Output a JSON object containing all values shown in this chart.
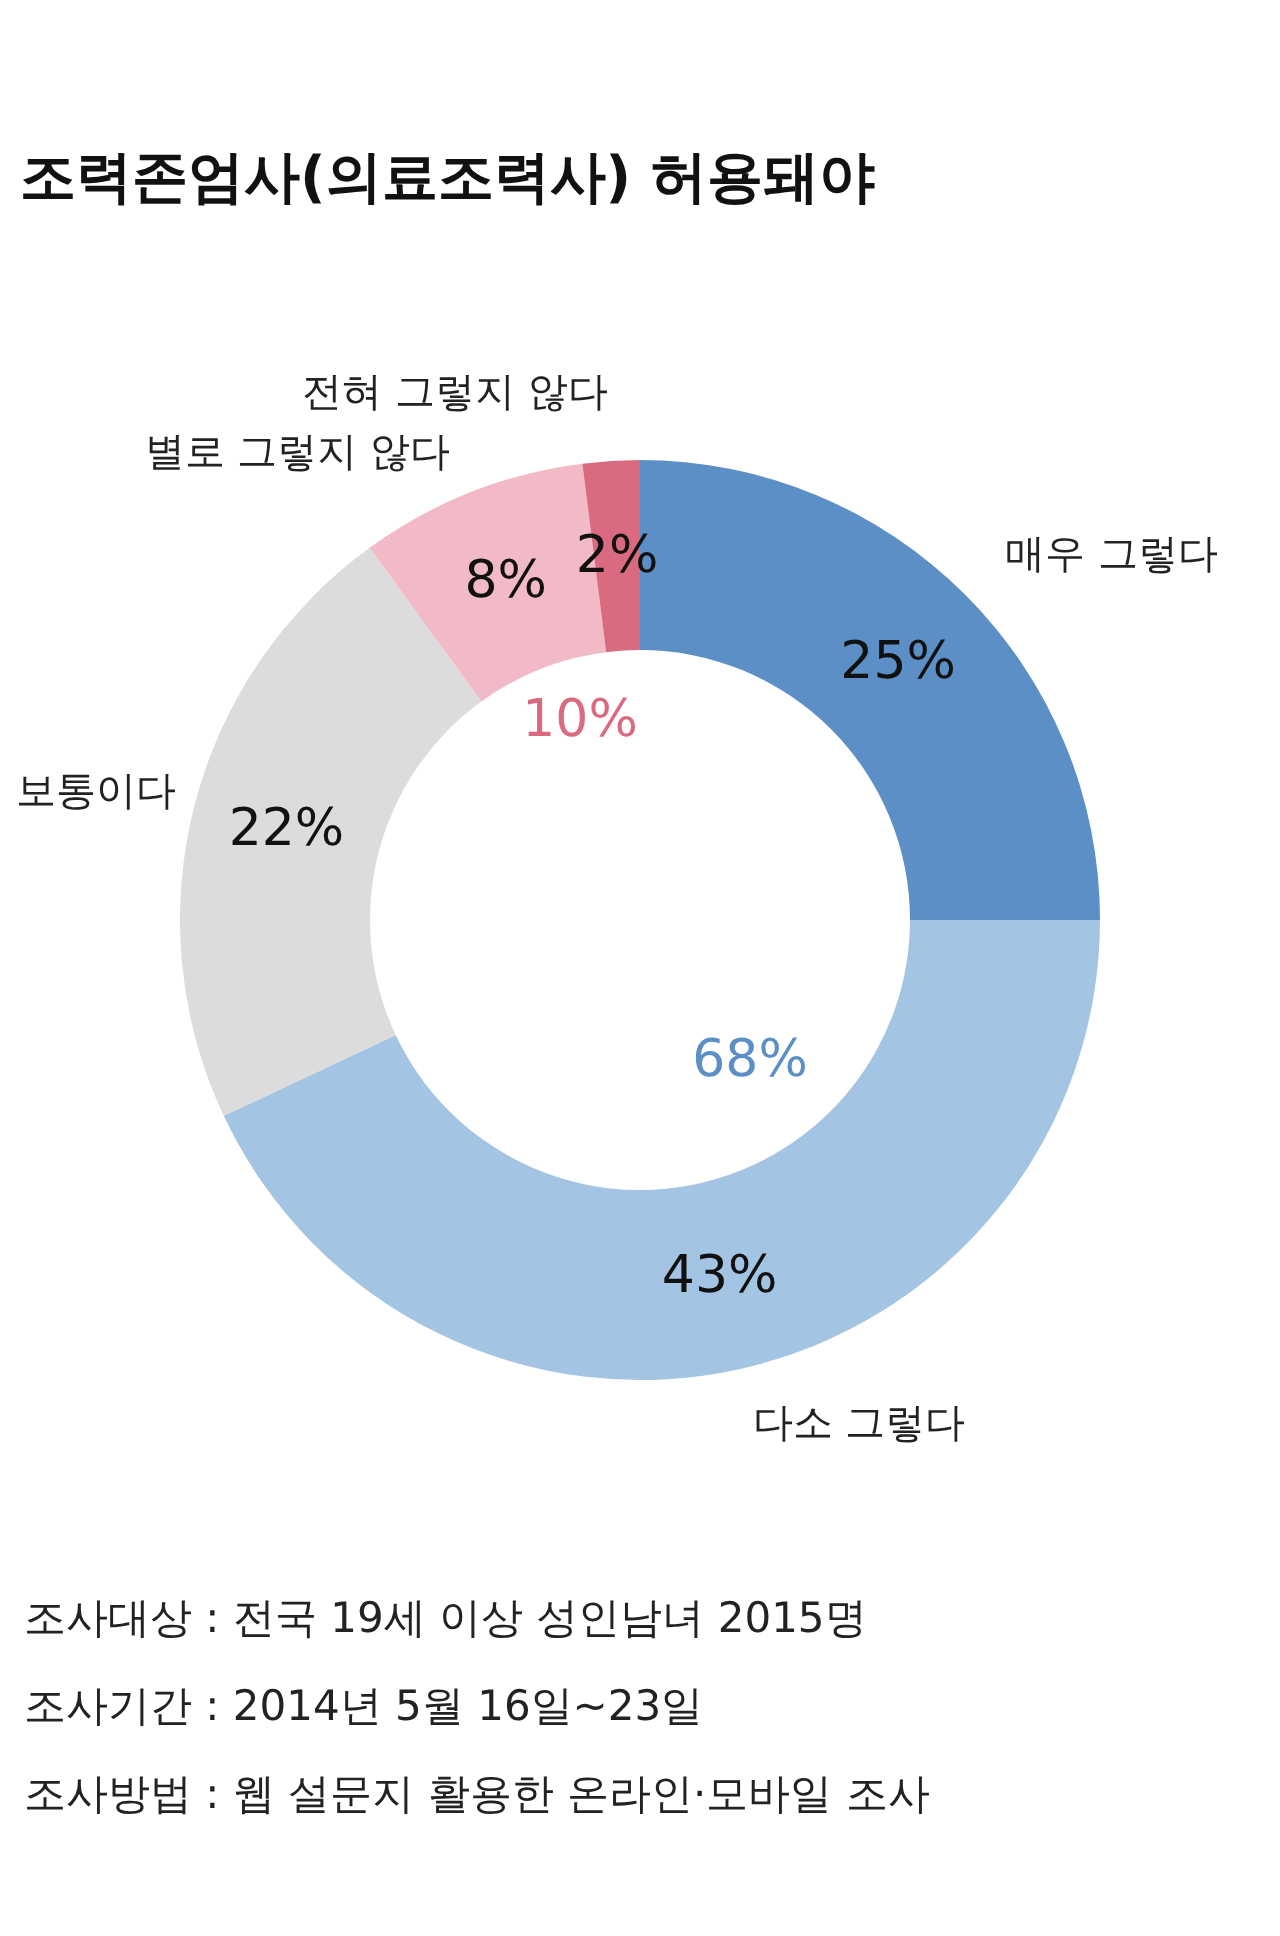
{
  "chart_data": {
    "type": "donut",
    "title": "조력존엄사(의료조력사) 허용돼야",
    "categories": [
      "매우 그렇다",
      "다소 그렇다",
      "보통이다",
      "별로 그렇지 않다",
      "전혀 그렇지 않다"
    ],
    "values": [
      25,
      43,
      22,
      8,
      2
    ],
    "value_labels": [
      "25%",
      "43%",
      "22%",
      "8%",
      "2%"
    ],
    "colors": [
      "#5b8fc6",
      "#a4c4e4",
      "#dcdcdc",
      "#f2b9c6",
      "#d96a80"
    ],
    "annotations": [
      "68%",
      "10%",
      "조사대상 : 전국 19세 이상 성인남녀 2015명",
      "조사기간 : 2014년 5월 16일~23일",
      "조사방법 : 웹 설문지 활용한 온라인·모바일 조사"
    ]
  }
}
